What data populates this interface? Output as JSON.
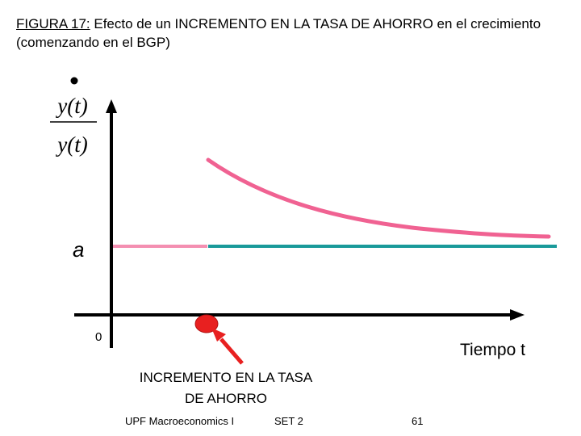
{
  "slide": {
    "title_label": "FIGURA 17:",
    "title_text": " Efecto de un INCREMENTO EN LA TASA DE AHORRO en el crecimiento (comenzando en el BGP)"
  },
  "diagram": {
    "y_numerator": "y(t)",
    "y_denominator": "y(t)",
    "level_label": "a",
    "origin_label": "0",
    "x_axis_label": "Tiempo t",
    "event_note": "INCREMENTO EN LA TASA DE AHORRO",
    "colors": {
      "pink_curve": "#f06292",
      "pink_light": "#f48fb1",
      "teal_line": "#1a9a9a",
      "event_marker": "#e82020",
      "axis": "#000000"
    }
  },
  "footer": {
    "course": "UPF Macroeconomics I",
    "set": "SET 2",
    "page": "61"
  }
}
